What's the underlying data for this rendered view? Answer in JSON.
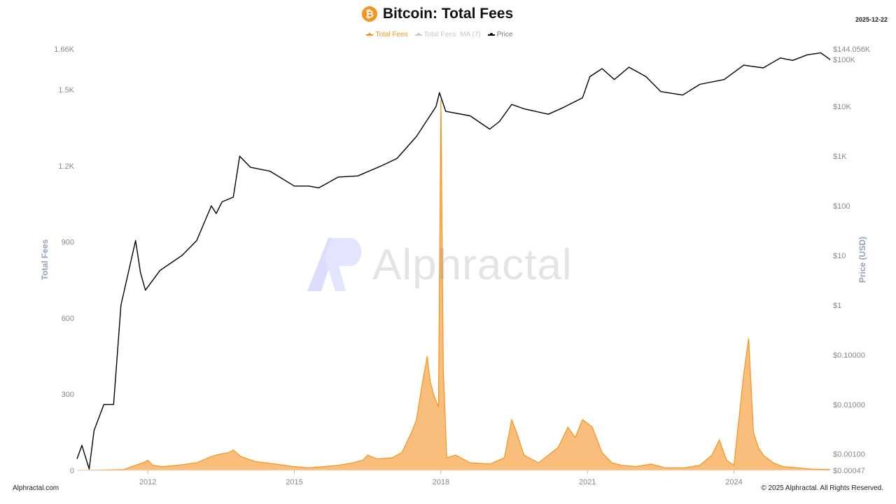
{
  "header": {
    "title": "Bitcoin: Total Fees",
    "logo_glyph": "₿",
    "date": "2025-12-22"
  },
  "footer": {
    "left": "Alphractal.com",
    "right": "© 2025 Alphractal. All Rights Reserved."
  },
  "watermark": {
    "text": "Alphractal"
  },
  "colors": {
    "fees": "#f7931a",
    "fees_fill": "#f8b365",
    "ma": "#c8c8c8",
    "price": "#000000",
    "axis_text": "#888888",
    "axis_title": "#94a3b8"
  },
  "legend": [
    {
      "label": "Total Fees",
      "color": "#f7931a"
    },
    {
      "label": "Total Fees  MA (7)",
      "color": "#c8c8c8"
    },
    {
      "label": "Price",
      "color": "#000000"
    }
  ],
  "chart_data": {
    "type": "area",
    "x_ticks": [
      "2012",
      "2015",
      "2018",
      "2021",
      "2024"
    ],
    "x_tick_years": [
      2012,
      2015,
      2018,
      2021,
      2024
    ],
    "x_range": [
      2010.55,
      2025.97
    ],
    "left_axis": {
      "label": "Total Fees",
      "ticks": [
        "0",
        "300",
        "600",
        "900",
        "1.2K",
        "1.5K",
        "1.66K"
      ],
      "tick_values": [
        0,
        300,
        600,
        900,
        1200,
        1500,
        1660
      ],
      "range": [
        0,
        1660
      ]
    },
    "right_axis": {
      "label": "Price (USD)",
      "scale": "log",
      "ticks": [
        "$0.00047",
        "$0.00100",
        "$0.01000",
        "$0.10000",
        "$1",
        "$10",
        "$100",
        "$1K",
        "$10K",
        "$100K",
        "$144.056K"
      ],
      "tick_values": [
        0.00047,
        0.001,
        0.01,
        0.1,
        1,
        10,
        100,
        1000,
        10000,
        100000,
        144056
      ],
      "range": [
        0.00047,
        144056
      ]
    },
    "series": [
      {
        "name": "Total Fees",
        "x": [
          2010.55,
          2011.0,
          2011.5,
          2011.75,
          2011.9,
          2012.0,
          2012.1,
          2012.3,
          2012.6,
          2013.0,
          2013.3,
          2013.5,
          2013.65,
          2013.75,
          2013.9,
          2014.2,
          2014.6,
          2015.0,
          2015.3,
          2015.6,
          2015.9,
          2016.2,
          2016.4,
          2016.5,
          2016.7,
          2017.0,
          2017.2,
          2017.4,
          2017.5,
          2017.6,
          2017.72,
          2017.78,
          2017.85,
          2017.95,
          2018.0,
          2018.05,
          2018.12,
          2018.3,
          2018.6,
          2019.0,
          2019.3,
          2019.45,
          2019.55,
          2019.7,
          2020.0,
          2020.4,
          2020.6,
          2020.75,
          2020.9,
          2021.1,
          2021.3,
          2021.5,
          2021.7,
          2022.0,
          2022.3,
          2022.6,
          2023.0,
          2023.3,
          2023.55,
          2023.7,
          2023.85,
          2024.0,
          2024.2,
          2024.3,
          2024.4,
          2024.5,
          2024.6,
          2024.8,
          2025.0,
          2025.3,
          2025.6,
          2025.97
        ],
        "y": [
          0,
          1,
          3,
          20,
          30,
          40,
          20,
          15,
          20,
          30,
          55,
          65,
          70,
          80,
          55,
          35,
          25,
          15,
          10,
          15,
          20,
          30,
          40,
          60,
          45,
          50,
          70,
          150,
          200,
          320,
          450,
          350,
          300,
          250,
          1460,
          400,
          50,
          60,
          30,
          25,
          50,
          200,
          150,
          60,
          30,
          90,
          170,
          130,
          200,
          170,
          70,
          30,
          20,
          15,
          25,
          10,
          10,
          20,
          60,
          120,
          40,
          20,
          380,
          520,
          150,
          90,
          60,
          30,
          15,
          10,
          5,
          3
        ]
      },
      {
        "name": "Price",
        "x": [
          2010.55,
          2010.65,
          2010.8,
          2010.9,
          2011.1,
          2011.3,
          2011.45,
          2011.75,
          2011.85,
          2011.95,
          2012.25,
          2012.7,
          2013.0,
          2013.3,
          2013.4,
          2013.52,
          2013.75,
          2013.88,
          2014.1,
          2014.5,
          2015.0,
          2015.3,
          2015.5,
          2015.9,
          2016.3,
          2016.8,
          2017.1,
          2017.5,
          2017.9,
          2017.97,
          2018.1,
          2018.6,
          2019.0,
          2019.2,
          2019.45,
          2019.7,
          2020.2,
          2020.5,
          2020.9,
          2021.05,
          2021.3,
          2021.55,
          2021.85,
          2022.2,
          2022.5,
          2022.95,
          2023.3,
          2023.8,
          2024.2,
          2024.6,
          2024.95,
          2025.2,
          2025.5,
          2025.78,
          2025.97
        ],
        "y": [
          0.0008,
          0.0015,
          0.0005,
          0.003,
          0.01,
          0.01,
          1,
          20,
          4.5,
          2,
          5,
          10,
          20,
          100,
          70,
          120,
          150,
          1000,
          600,
          500,
          250,
          250,
          230,
          380,
          400,
          650,
          900,
          2500,
          10000,
          19000,
          8000,
          6500,
          3500,
          5000,
          11000,
          9000,
          7000,
          9500,
          15000,
          40000,
          58000,
          35000,
          62000,
          40000,
          20000,
          17000,
          28000,
          35000,
          68000,
          60000,
          95000,
          85000,
          110000,
          120000,
          88000
        ]
      }
    ]
  }
}
